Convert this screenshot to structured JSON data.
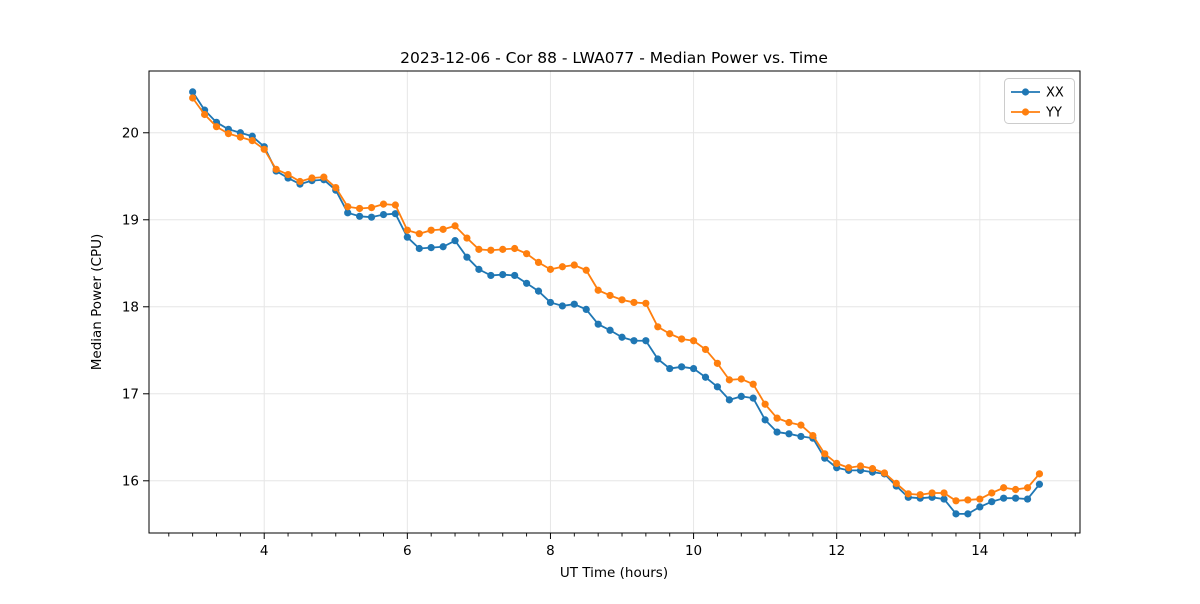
{
  "chart_data": {
    "type": "line",
    "title": "2023-12-06 - Cor 88 - LWA077 - Median Power vs. Time",
    "xlabel": "UT Time (hours)",
    "ylabel": "Median Power (CPU)",
    "xlim": [
      2.39,
      15.4
    ],
    "ylim": [
      15.4,
      20.71
    ],
    "x_ticks": [
      4,
      6,
      8,
      10,
      12,
      14
    ],
    "y_ticks": [
      16,
      17,
      18,
      19,
      20
    ],
    "x_minor_step": 0.33333,
    "grid": true,
    "legend_position": "upper right",
    "grid_color": "#e6e6e6",
    "x": [
      3.0,
      3.167,
      3.333,
      3.5,
      3.667,
      3.833,
      4.0,
      4.167,
      4.333,
      4.5,
      4.667,
      4.833,
      5.0,
      5.167,
      5.333,
      5.5,
      5.667,
      5.833,
      6.0,
      6.167,
      6.333,
      6.5,
      6.667,
      6.833,
      7.0,
      7.167,
      7.333,
      7.5,
      7.667,
      7.833,
      8.0,
      8.167,
      8.333,
      8.5,
      8.667,
      8.833,
      9.0,
      9.167,
      9.333,
      9.5,
      9.667,
      9.833,
      10.0,
      10.167,
      10.333,
      10.5,
      10.667,
      10.833,
      11.0,
      11.167,
      11.333,
      11.5,
      11.667,
      11.833,
      12.0,
      12.167,
      12.333,
      12.5,
      12.667,
      12.833,
      13.0,
      13.167,
      13.333,
      13.5,
      13.667,
      13.833,
      14.0,
      14.167,
      14.333,
      14.5,
      14.667,
      14.833
    ],
    "series": [
      {
        "name": "XX",
        "color": "#1f77b4",
        "values": [
          20.47,
          20.26,
          20.12,
          20.04,
          20.0,
          19.96,
          19.84,
          19.56,
          19.48,
          19.41,
          19.45,
          19.46,
          19.34,
          19.08,
          19.04,
          19.03,
          19.06,
          19.07,
          18.8,
          18.67,
          18.68,
          18.69,
          18.76,
          18.57,
          18.43,
          18.36,
          18.37,
          18.36,
          18.27,
          18.18,
          18.05,
          18.01,
          18.03,
          17.97,
          17.8,
          17.73,
          17.65,
          17.61,
          17.61,
          17.4,
          17.29,
          17.31,
          17.29,
          17.19,
          17.08,
          16.93,
          16.97,
          16.95,
          16.7,
          16.56,
          16.54,
          16.51,
          16.49,
          16.26,
          16.15,
          16.12,
          16.12,
          16.1,
          16.08,
          15.94,
          15.81,
          15.8,
          15.81,
          15.79,
          15.62,
          15.62,
          15.7,
          15.76,
          15.8,
          15.8,
          15.79,
          15.96
        ]
      },
      {
        "name": "YY",
        "color": "#ff7f0e",
        "values": [
          20.4,
          20.21,
          20.07,
          19.99,
          19.95,
          19.91,
          19.81,
          19.58,
          19.52,
          19.44,
          19.48,
          19.49,
          19.37,
          19.15,
          19.13,
          19.14,
          19.18,
          19.17,
          18.88,
          18.84,
          18.88,
          18.89,
          18.93,
          18.79,
          18.66,
          18.65,
          18.66,
          18.67,
          18.61,
          18.51,
          18.43,
          18.46,
          18.48,
          18.42,
          18.19,
          18.13,
          18.08,
          18.05,
          18.04,
          17.77,
          17.69,
          17.63,
          17.61,
          17.51,
          17.35,
          17.16,
          17.17,
          17.11,
          16.88,
          16.72,
          16.67,
          16.64,
          16.52,
          16.31,
          16.2,
          16.15,
          16.17,
          16.14,
          16.09,
          15.97,
          15.85,
          15.84,
          15.86,
          15.86,
          15.77,
          15.78,
          15.79,
          15.86,
          15.92,
          15.9,
          15.92,
          16.08
        ]
      }
    ]
  }
}
